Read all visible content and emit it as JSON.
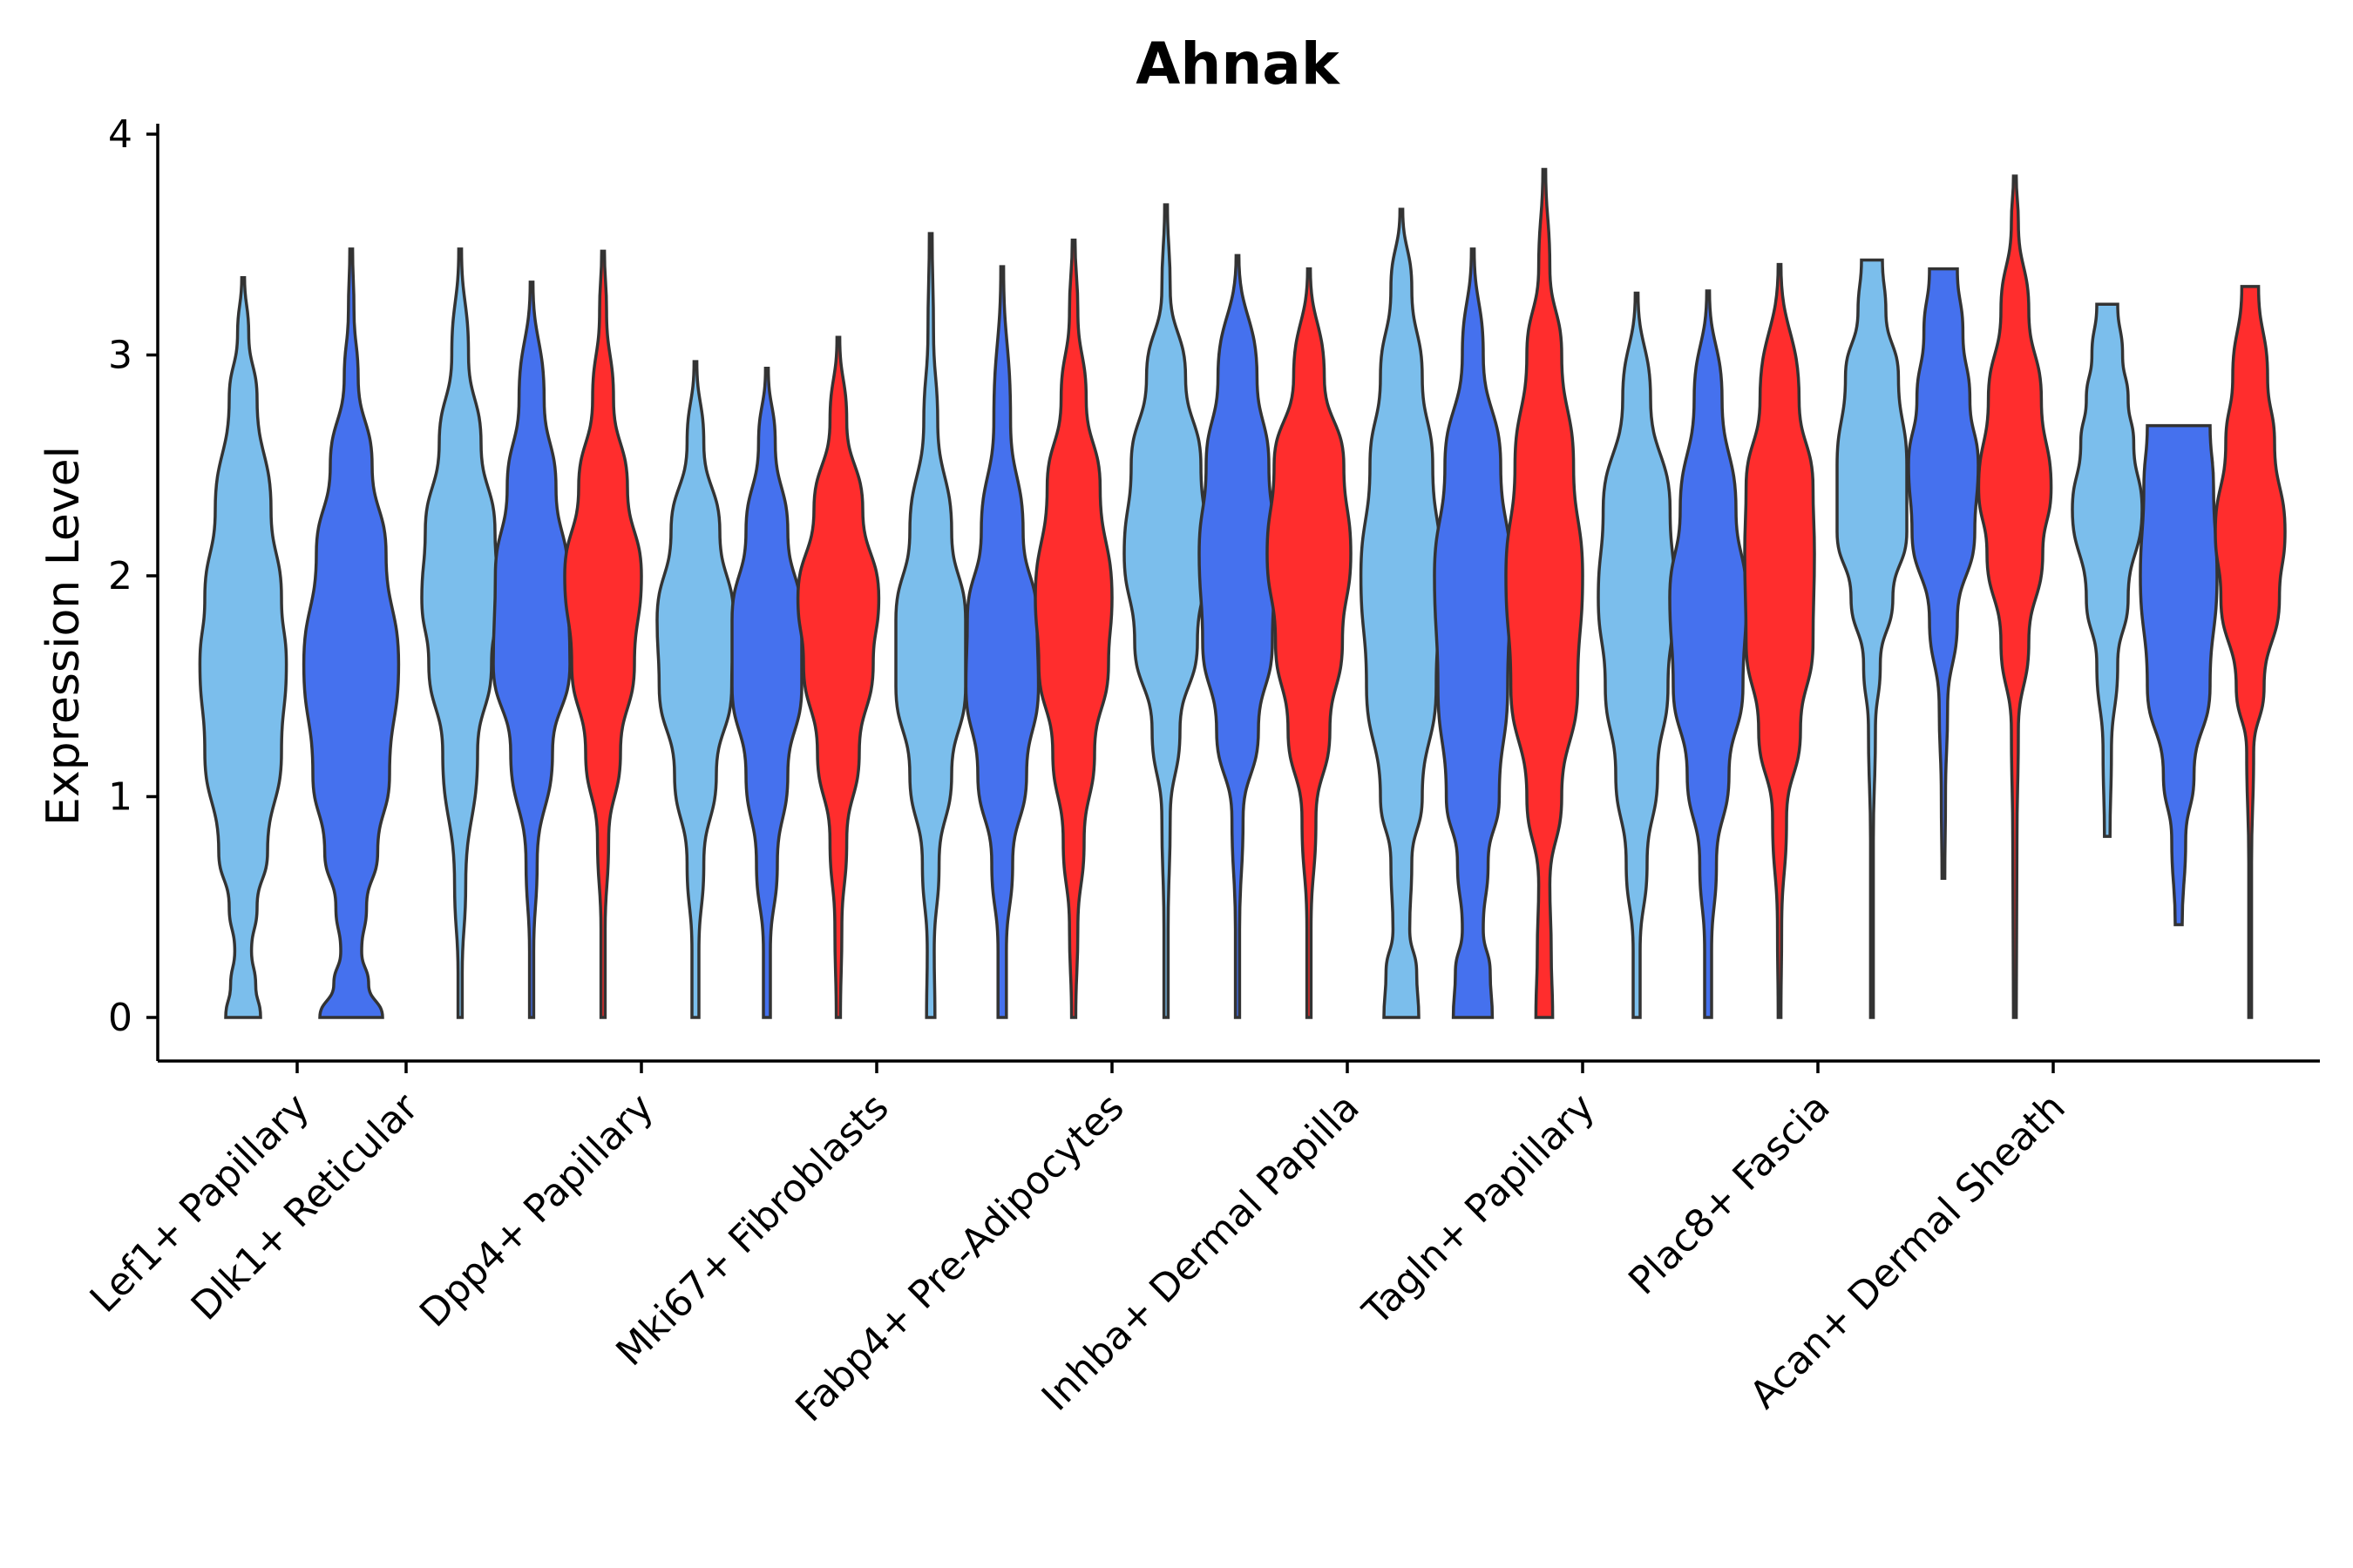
{
  "chart_data": {
    "type": "violin",
    "title": "Ahnak",
    "ylabel": "Expression Level",
    "xlabel": "",
    "ylim": [
      -0.2,
      4.05
    ],
    "yticks": [
      0,
      1,
      2,
      3,
      4
    ],
    "grid": false,
    "legend": "none",
    "colors": [
      "#7bbeec",
      "#4571ee",
      "#ff2d2d"
    ],
    "categories": [
      "Lef1+ Papillary",
      "Dlk1+ Reticular",
      "Dpp4+ Papillary",
      "Mki67+ Fibroblasts",
      "Fabp4+ Pre-Adipocytes",
      "Inhba+ Dermal Papilla",
      "Tagln+ Papillary",
      "Plac8+ Fascia",
      "Acan+ Dermal Sheath"
    ],
    "violins": [
      {
        "group": 0,
        "color_index": 0,
        "min": 0,
        "max": 3.35,
        "profile": [
          [
            0,
            0.25
          ],
          [
            0.15,
            0.18
          ],
          [
            0.3,
            0.12
          ],
          [
            0.5,
            0.2
          ],
          [
            0.75,
            0.35
          ],
          [
            1.2,
            0.55
          ],
          [
            1.6,
            0.62
          ],
          [
            1.9,
            0.55
          ],
          [
            2.3,
            0.4
          ],
          [
            2.8,
            0.2
          ],
          [
            3.1,
            0.08
          ],
          [
            3.35,
            0.02
          ]
        ]
      },
      {
        "group": 0,
        "color_index": 1,
        "min": 0,
        "max": 3.48,
        "profile": [
          [
            0,
            0.45
          ],
          [
            0.15,
            0.25
          ],
          [
            0.3,
            0.15
          ],
          [
            0.5,
            0.22
          ],
          [
            0.75,
            0.38
          ],
          [
            1.1,
            0.55
          ],
          [
            1.6,
            0.68
          ],
          [
            2.1,
            0.5
          ],
          [
            2.5,
            0.3
          ],
          [
            2.9,
            0.1
          ],
          [
            3.2,
            0.04
          ],
          [
            3.48,
            0.02
          ]
        ]
      },
      {
        "group": 1,
        "color_index": 0,
        "min": 0,
        "max": 3.48,
        "profile": [
          [
            0,
            0.03
          ],
          [
            0.2,
            0.03
          ],
          [
            0.6,
            0.08
          ],
          [
            1.2,
            0.25
          ],
          [
            1.6,
            0.45
          ],
          [
            1.9,
            0.55
          ],
          [
            2.2,
            0.5
          ],
          [
            2.6,
            0.3
          ],
          [
            3.0,
            0.12
          ],
          [
            3.48,
            0.02
          ]
        ]
      },
      {
        "group": 1,
        "color_index": 1,
        "min": 0,
        "max": 3.33,
        "profile": [
          [
            0,
            0.03
          ],
          [
            0.3,
            0.03
          ],
          [
            0.7,
            0.08
          ],
          [
            1.2,
            0.3
          ],
          [
            1.6,
            0.55
          ],
          [
            2.0,
            0.52
          ],
          [
            2.4,
            0.35
          ],
          [
            2.8,
            0.18
          ],
          [
            3.33,
            0.02
          ]
        ]
      },
      {
        "group": 1,
        "color_index": 2,
        "min": 0,
        "max": 3.47,
        "profile": [
          [
            0,
            0.03
          ],
          [
            0.4,
            0.03
          ],
          [
            0.8,
            0.08
          ],
          [
            1.2,
            0.25
          ],
          [
            1.6,
            0.45
          ],
          [
            2.0,
            0.55
          ],
          [
            2.4,
            0.35
          ],
          [
            2.8,
            0.15
          ],
          [
            3.2,
            0.05
          ],
          [
            3.47,
            0.02
          ]
        ]
      },
      {
        "group": 2,
        "color_index": 0,
        "min": 0,
        "max": 2.97,
        "profile": [
          [
            0,
            0.05
          ],
          [
            0.3,
            0.05
          ],
          [
            0.7,
            0.12
          ],
          [
            1.1,
            0.3
          ],
          [
            1.5,
            0.52
          ],
          [
            1.8,
            0.55
          ],
          [
            2.2,
            0.35
          ],
          [
            2.6,
            0.12
          ],
          [
            2.97,
            0.02
          ]
        ]
      },
      {
        "group": 2,
        "color_index": 1,
        "min": 0,
        "max": 2.94,
        "profile": [
          [
            0,
            0.05
          ],
          [
            0.3,
            0.05
          ],
          [
            0.7,
            0.15
          ],
          [
            1.1,
            0.3
          ],
          [
            1.5,
            0.5
          ],
          [
            1.8,
            0.5
          ],
          [
            2.2,
            0.3
          ],
          [
            2.6,
            0.12
          ],
          [
            2.94,
            0.02
          ]
        ]
      },
      {
        "group": 2,
        "color_index": 2,
        "min": 0,
        "max": 3.08,
        "profile": [
          [
            0,
            0.03
          ],
          [
            0.4,
            0.05
          ],
          [
            0.8,
            0.12
          ],
          [
            1.2,
            0.3
          ],
          [
            1.6,
            0.5
          ],
          [
            1.9,
            0.58
          ],
          [
            2.3,
            0.35
          ],
          [
            2.7,
            0.12
          ],
          [
            3.08,
            0.02
          ]
        ]
      },
      {
        "group": 3,
        "color_index": 0,
        "min": 0,
        "max": 3.55,
        "profile": [
          [
            0,
            0.06
          ],
          [
            0.3,
            0.05
          ],
          [
            0.7,
            0.12
          ],
          [
            1.1,
            0.3
          ],
          [
            1.5,
            0.5
          ],
          [
            1.8,
            0.5
          ],
          [
            2.2,
            0.3
          ],
          [
            2.7,
            0.1
          ],
          [
            3.1,
            0.04
          ],
          [
            3.55,
            0.02
          ]
        ]
      },
      {
        "group": 3,
        "color_index": 1,
        "min": 0,
        "max": 3.4,
        "profile": [
          [
            0,
            0.06
          ],
          [
            0.3,
            0.06
          ],
          [
            0.7,
            0.15
          ],
          [
            1.1,
            0.35
          ],
          [
            1.5,
            0.52
          ],
          [
            1.8,
            0.5
          ],
          [
            2.2,
            0.3
          ],
          [
            2.7,
            0.12
          ],
          [
            3.4,
            0.02
          ]
        ]
      },
      {
        "group": 3,
        "color_index": 2,
        "min": 0,
        "max": 3.52,
        "profile": [
          [
            0,
            0.03
          ],
          [
            0.4,
            0.06
          ],
          [
            0.8,
            0.15
          ],
          [
            1.2,
            0.3
          ],
          [
            1.6,
            0.5
          ],
          [
            1.9,
            0.55
          ],
          [
            2.4,
            0.38
          ],
          [
            2.8,
            0.18
          ],
          [
            3.2,
            0.06
          ],
          [
            3.52,
            0.02
          ]
        ]
      },
      {
        "group": 4,
        "color_index": 0,
        "min": 0,
        "max": 3.68,
        "profile": [
          [
            0,
            0.03
          ],
          [
            0.4,
            0.03
          ],
          [
            0.9,
            0.06
          ],
          [
            1.3,
            0.2
          ],
          [
            1.7,
            0.45
          ],
          [
            2.1,
            0.6
          ],
          [
            2.5,
            0.5
          ],
          [
            2.9,
            0.28
          ],
          [
            3.3,
            0.06
          ],
          [
            3.68,
            0.02
          ]
        ]
      },
      {
        "group": 4,
        "color_index": 1,
        "min": 0,
        "max": 3.45,
        "profile": [
          [
            0,
            0.03
          ],
          [
            0.4,
            0.03
          ],
          [
            0.9,
            0.08
          ],
          [
            1.3,
            0.3
          ],
          [
            1.7,
            0.5
          ],
          [
            2.1,
            0.55
          ],
          [
            2.5,
            0.45
          ],
          [
            2.9,
            0.28
          ],
          [
            3.45,
            0.02
          ]
        ]
      },
      {
        "group": 4,
        "color_index": 2,
        "min": 0,
        "max": 3.39,
        "profile": [
          [
            0,
            0.03
          ],
          [
            0.4,
            0.03
          ],
          [
            0.9,
            0.1
          ],
          [
            1.3,
            0.3
          ],
          [
            1.7,
            0.48
          ],
          [
            2.1,
            0.6
          ],
          [
            2.5,
            0.5
          ],
          [
            2.9,
            0.22
          ],
          [
            3.39,
            0.02
          ]
        ]
      },
      {
        "group": 5,
        "color_index": 0,
        "min": 0,
        "max": 3.66,
        "profile": [
          [
            0,
            0.25
          ],
          [
            0.2,
            0.22
          ],
          [
            0.4,
            0.12
          ],
          [
            0.7,
            0.15
          ],
          [
            1.0,
            0.3
          ],
          [
            1.5,
            0.5
          ],
          [
            2.0,
            0.58
          ],
          [
            2.5,
            0.45
          ],
          [
            2.9,
            0.3
          ],
          [
            3.3,
            0.15
          ],
          [
            3.66,
            0.02
          ]
        ]
      },
      {
        "group": 5,
        "color_index": 1,
        "min": 0,
        "max": 3.48,
        "profile": [
          [
            0,
            0.28
          ],
          [
            0.2,
            0.25
          ],
          [
            0.4,
            0.15
          ],
          [
            0.7,
            0.22
          ],
          [
            1.0,
            0.38
          ],
          [
            1.5,
            0.5
          ],
          [
            2.0,
            0.55
          ],
          [
            2.5,
            0.4
          ],
          [
            3.0,
            0.15
          ],
          [
            3.48,
            0.02
          ]
        ]
      },
      {
        "group": 5,
        "color_index": 2,
        "min": 0,
        "max": 3.84,
        "profile": [
          [
            0,
            0.12
          ],
          [
            0.3,
            0.1
          ],
          [
            0.6,
            0.08
          ],
          [
            1.0,
            0.25
          ],
          [
            1.5,
            0.48
          ],
          [
            2.0,
            0.55
          ],
          [
            2.5,
            0.42
          ],
          [
            3.0,
            0.25
          ],
          [
            3.4,
            0.08
          ],
          [
            3.84,
            0.02
          ]
        ]
      },
      {
        "group": 6,
        "color_index": 0,
        "min": 0,
        "max": 3.28,
        "profile": [
          [
            0,
            0.05
          ],
          [
            0.3,
            0.05
          ],
          [
            0.7,
            0.15
          ],
          [
            1.1,
            0.3
          ],
          [
            1.5,
            0.45
          ],
          [
            1.9,
            0.55
          ],
          [
            2.3,
            0.48
          ],
          [
            2.8,
            0.2
          ],
          [
            3.28,
            0.02
          ]
        ]
      },
      {
        "group": 6,
        "color_index": 1,
        "min": 0,
        "max": 3.29,
        "profile": [
          [
            0,
            0.05
          ],
          [
            0.3,
            0.05
          ],
          [
            0.7,
            0.12
          ],
          [
            1.1,
            0.3
          ],
          [
            1.5,
            0.5
          ],
          [
            1.9,
            0.55
          ],
          [
            2.3,
            0.4
          ],
          [
            2.8,
            0.2
          ],
          [
            3.29,
            0.02
          ]
        ]
      },
      {
        "group": 6,
        "color_index": 2,
        "min": 0,
        "max": 3.41,
        "profile": [
          [
            0,
            0.02
          ],
          [
            0.4,
            0.03
          ],
          [
            0.9,
            0.1
          ],
          [
            1.3,
            0.3
          ],
          [
            1.7,
            0.48
          ],
          [
            2.1,
            0.5
          ],
          [
            2.4,
            0.48
          ],
          [
            2.8,
            0.28
          ],
          [
            3.41,
            0.02
          ]
        ]
      },
      {
        "group": 7,
        "color_index": 0,
        "min": 0,
        "max": 3.43,
        "profile": [
          [
            0,
            0.02
          ],
          [
            0.8,
            0.02
          ],
          [
            1.3,
            0.05
          ],
          [
            1.6,
            0.12
          ],
          [
            1.9,
            0.3
          ],
          [
            2.2,
            0.5
          ],
          [
            2.5,
            0.5
          ],
          [
            2.9,
            0.38
          ],
          [
            3.2,
            0.2
          ],
          [
            3.43,
            0.15
          ]
        ]
      },
      {
        "group": 7,
        "color_index": 1,
        "min": 0.63,
        "max": 3.39,
        "profile": [
          [
            0.63,
            0.02
          ],
          [
            1.0,
            0.03
          ],
          [
            1.4,
            0.06
          ],
          [
            1.8,
            0.2
          ],
          [
            2.2,
            0.45
          ],
          [
            2.5,
            0.5
          ],
          [
            2.8,
            0.38
          ],
          [
            3.1,
            0.28
          ],
          [
            3.39,
            0.2
          ]
        ]
      },
      {
        "group": 7,
        "color_index": 2,
        "min": 0,
        "max": 3.81,
        "profile": [
          [
            0,
            0.02
          ],
          [
            0.8,
            0.03
          ],
          [
            1.3,
            0.05
          ],
          [
            1.7,
            0.2
          ],
          [
            2.1,
            0.4
          ],
          [
            2.4,
            0.52
          ],
          [
            2.8,
            0.38
          ],
          [
            3.2,
            0.2
          ],
          [
            3.6,
            0.05
          ],
          [
            3.81,
            0.02
          ]
        ]
      },
      {
        "group": 8,
        "color_index": 0,
        "min": 0.82,
        "max": 3.23,
        "profile": [
          [
            0.82,
            0.04
          ],
          [
            1.2,
            0.06
          ],
          [
            1.6,
            0.15
          ],
          [
            1.9,
            0.3
          ],
          [
            2.3,
            0.5
          ],
          [
            2.6,
            0.38
          ],
          [
            2.8,
            0.3
          ],
          [
            3.0,
            0.22
          ],
          [
            3.23,
            0.15
          ]
        ]
      },
      {
        "group": 8,
        "color_index": 1,
        "min": 0.42,
        "max": 2.68,
        "profile": [
          [
            0.42,
            0.05
          ],
          [
            0.8,
            0.1
          ],
          [
            1.1,
            0.22
          ],
          [
            1.5,
            0.45
          ],
          [
            2.0,
            0.55
          ],
          [
            2.4,
            0.5
          ],
          [
            2.68,
            0.45
          ]
        ]
      },
      {
        "group": 8,
        "color_index": 2,
        "min": 0,
        "max": 3.31,
        "profile": [
          [
            0,
            0.02
          ],
          [
            0.7,
            0.02
          ],
          [
            1.2,
            0.05
          ],
          [
            1.5,
            0.2
          ],
          [
            1.9,
            0.42
          ],
          [
            2.2,
            0.5
          ],
          [
            2.6,
            0.35
          ],
          [
            2.9,
            0.25
          ],
          [
            3.31,
            0.12
          ]
        ]
      }
    ]
  }
}
